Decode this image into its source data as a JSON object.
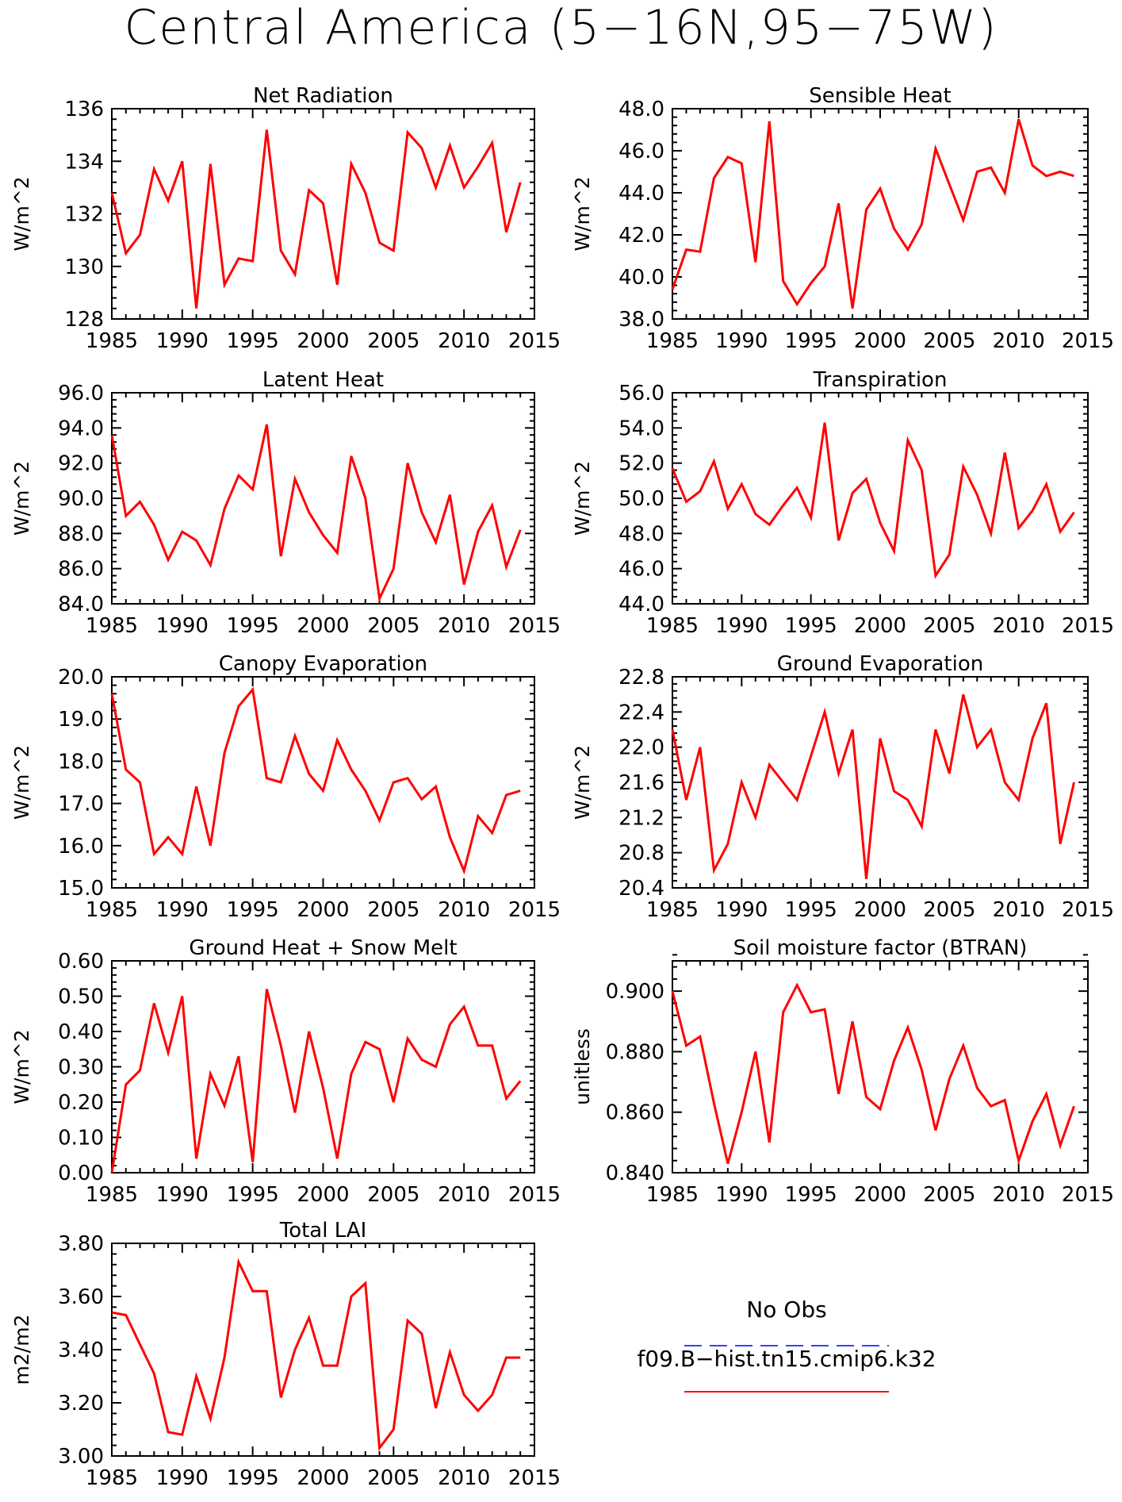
{
  "figure": {
    "title": "Central America (5−16N,95−75W)"
  },
  "legend": {
    "entries": [
      {
        "label": "No Obs",
        "color": "#3344ff",
        "style": "dashed"
      },
      {
        "label": "f09.B−hist.tn15.cmip6.k32",
        "color": "#ff0000",
        "style": "solid"
      }
    ]
  },
  "chart_data": [
    {
      "type": "line",
      "title": "Net Radiation",
      "ylabel": "W/m^2",
      "xlim": [
        1985,
        2015
      ],
      "ylim": [
        128,
        136
      ],
      "yticks": [
        128,
        130,
        132,
        134,
        136
      ],
      "ytick_labels": [
        "128",
        "130",
        "132",
        "134",
        "136"
      ],
      "xticks": [
        1985,
        1990,
        1995,
        2000,
        2005,
        2010,
        2015
      ],
      "xtick_labels": [
        "1985",
        "1990",
        "1995",
        "2000",
        "2005",
        "2010",
        "2015"
      ],
      "series": [
        {
          "color": "#ff0000",
          "x": [
            1985,
            1986,
            1987,
            1988,
            1989,
            1990,
            1991,
            1992,
            1993,
            1994,
            1995,
            1996,
            1997,
            1998,
            1999,
            2000,
            2001,
            2002,
            2003,
            2004,
            2005,
            2006,
            2007,
            2008,
            2009,
            2010,
            2011,
            2012,
            2013,
            2014
          ],
          "y": [
            132.8,
            130.5,
            131.2,
            133.7,
            132.5,
            134.0,
            128.4,
            133.9,
            129.3,
            130.3,
            130.2,
            135.2,
            130.6,
            129.7,
            132.9,
            132.4,
            129.3,
            133.9,
            132.8,
            130.9,
            130.6,
            135.1,
            134.5,
            133.0,
            134.6,
            133.0,
            133.8,
            134.7,
            131.3,
            133.2
          ]
        }
      ]
    },
    {
      "type": "line",
      "title": "Sensible Heat",
      "ylabel": "W/m^2",
      "xlim": [
        1985,
        2015
      ],
      "ylim": [
        38,
        48
      ],
      "yticks": [
        38,
        40,
        42,
        44,
        46,
        48
      ],
      "ytick_labels": [
        "38.0",
        "40.0",
        "42.0",
        "44.0",
        "46.0",
        "48.0"
      ],
      "xticks": [
        1985,
        1990,
        1995,
        2000,
        2005,
        2010,
        2015
      ],
      "xtick_labels": [
        "1985",
        "1990",
        "1995",
        "2000",
        "2005",
        "2010",
        "2015"
      ],
      "series": [
        {
          "color": "#ff0000",
          "x": [
            1985,
            1986,
            1987,
            1988,
            1989,
            1990,
            1991,
            1992,
            1993,
            1994,
            1995,
            1996,
            1997,
            1998,
            1999,
            2000,
            2001,
            2002,
            2003,
            2004,
            2005,
            2006,
            2007,
            2008,
            2009,
            2010,
            2011,
            2012,
            2013,
            2014
          ],
          "y": [
            39.4,
            41.3,
            41.2,
            44.7,
            45.7,
            45.4,
            40.7,
            47.4,
            39.8,
            38.7,
            39.7,
            40.5,
            43.5,
            38.5,
            43.2,
            44.2,
            42.3,
            41.3,
            42.5,
            46.1,
            44.4,
            42.7,
            45.0,
            45.2,
            44.0,
            47.5,
            45.3,
            44.8,
            45.0,
            44.8
          ]
        }
      ]
    },
    {
      "type": "line",
      "title": "Latent Heat",
      "ylabel": "W/m^2",
      "xlim": [
        1985,
        2015
      ],
      "ylim": [
        84,
        96
      ],
      "yticks": [
        84,
        86,
        88,
        90,
        92,
        94,
        96
      ],
      "ytick_labels": [
        "84.0",
        "86.0",
        "88.0",
        "90.0",
        "92.0",
        "94.0",
        "96.0"
      ],
      "xticks": [
        1985,
        1990,
        1995,
        2000,
        2005,
        2010,
        2015
      ],
      "xtick_labels": [
        "1985",
        "1990",
        "1995",
        "2000",
        "2005",
        "2010",
        "2015"
      ],
      "series": [
        {
          "color": "#ff0000",
          "x": [
            1985,
            1986,
            1987,
            1988,
            1989,
            1990,
            1991,
            1992,
            1993,
            1994,
            1995,
            1996,
            1997,
            1998,
            1999,
            2000,
            2001,
            2002,
            2003,
            2004,
            2005,
            2006,
            2007,
            2008,
            2009,
            2010,
            2011,
            2012,
            2013,
            2014
          ],
          "y": [
            93.6,
            89.0,
            89.8,
            88.5,
            86.5,
            88.1,
            87.6,
            86.2,
            89.4,
            91.3,
            90.5,
            94.2,
            86.7,
            91.1,
            89.2,
            87.9,
            86.9,
            92.4,
            90.0,
            84.3,
            86.0,
            92.0,
            89.2,
            87.5,
            90.2,
            85.1,
            88.1,
            89.6,
            86.1,
            88.2
          ]
        }
      ]
    },
    {
      "type": "line",
      "title": "Transpiration",
      "ylabel": "W/m^2",
      "xlim": [
        1985,
        2015
      ],
      "ylim": [
        44,
        56
      ],
      "yticks": [
        44,
        46,
        48,
        50,
        52,
        54,
        56
      ],
      "ytick_labels": [
        "44.0",
        "46.0",
        "48.0",
        "50.0",
        "52.0",
        "54.0",
        "56.0"
      ],
      "xticks": [
        1985,
        1990,
        1995,
        2000,
        2005,
        2010,
        2015
      ],
      "xtick_labels": [
        "1985",
        "1990",
        "1995",
        "2000",
        "2005",
        "2010",
        "2015"
      ],
      "series": [
        {
          "color": "#ff0000",
          "x": [
            1985,
            1986,
            1987,
            1988,
            1989,
            1990,
            1991,
            1992,
            1993,
            1994,
            1995,
            1996,
            1997,
            1998,
            1999,
            2000,
            2001,
            2002,
            2003,
            2004,
            2005,
            2006,
            2007,
            2008,
            2009,
            2010,
            2011,
            2012,
            2013,
            2014
          ],
          "y": [
            51.7,
            49.8,
            50.4,
            52.1,
            49.4,
            50.8,
            49.1,
            48.5,
            49.6,
            50.6,
            48.9,
            54.3,
            47.6,
            50.3,
            51.1,
            48.6,
            47.0,
            53.3,
            51.6,
            45.6,
            46.8,
            51.8,
            50.2,
            48.0,
            52.6,
            48.3,
            49.3,
            50.8,
            48.1,
            49.2
          ]
        }
      ]
    },
    {
      "type": "line",
      "title": "Canopy Evaporation",
      "ylabel": "W/m^2",
      "xlim": [
        1985,
        2015
      ],
      "ylim": [
        15,
        20
      ],
      "yticks": [
        15,
        16,
        17,
        18,
        19,
        20
      ],
      "ytick_labels": [
        "15.0",
        "16.0",
        "17.0",
        "18.0",
        "19.0",
        "20.0"
      ],
      "xticks": [
        1985,
        1990,
        1995,
        2000,
        2005,
        2010,
        2015
      ],
      "xtick_labels": [
        "1985",
        "1990",
        "1995",
        "2000",
        "2005",
        "2010",
        "2015"
      ],
      "series": [
        {
          "color": "#ff0000",
          "x": [
            1985,
            1986,
            1987,
            1988,
            1989,
            1990,
            1991,
            1992,
            1993,
            1994,
            1995,
            1996,
            1997,
            1998,
            1999,
            2000,
            2001,
            2002,
            2003,
            2004,
            2005,
            2006,
            2007,
            2008,
            2009,
            2010,
            2011,
            2012,
            2013,
            2014
          ],
          "y": [
            19.6,
            17.8,
            17.5,
            15.8,
            16.2,
            15.8,
            17.4,
            16.0,
            18.2,
            19.3,
            19.7,
            17.6,
            17.5,
            18.6,
            17.7,
            17.3,
            18.5,
            17.8,
            17.3,
            16.6,
            17.5,
            17.6,
            17.1,
            17.4,
            16.2,
            15.4,
            16.7,
            16.3,
            17.2,
            17.3
          ]
        }
      ]
    },
    {
      "type": "line",
      "title": "Ground Evaporation",
      "ylabel": "W/m^2",
      "xlim": [
        1985,
        2015
      ],
      "ylim": [
        20.4,
        22.8
      ],
      "yticks": [
        20.4,
        20.8,
        21.2,
        21.6,
        22.0,
        22.4,
        22.8
      ],
      "ytick_labels": [
        "20.4",
        "20.8",
        "21.2",
        "21.6",
        "22.0",
        "22.4",
        "22.8"
      ],
      "xticks": [
        1985,
        1990,
        1995,
        2000,
        2005,
        2010,
        2015
      ],
      "xtick_labels": [
        "1985",
        "1990",
        "1995",
        "2000",
        "2005",
        "2010",
        "2015"
      ],
      "series": [
        {
          "color": "#ff0000",
          "x": [
            1985,
            1986,
            1987,
            1988,
            1989,
            1990,
            1991,
            1992,
            1993,
            1994,
            1995,
            1996,
            1997,
            1998,
            1999,
            2000,
            2001,
            2002,
            2003,
            2004,
            2005,
            2006,
            2007,
            2008,
            2009,
            2010,
            2011,
            2012,
            2013,
            2014
          ],
          "y": [
            22.2,
            21.4,
            22.0,
            20.6,
            20.9,
            21.6,
            21.2,
            21.8,
            21.6,
            21.4,
            21.9,
            22.4,
            21.7,
            22.2,
            20.5,
            22.1,
            21.5,
            21.4,
            21.1,
            22.2,
            21.7,
            22.6,
            22.0,
            22.2,
            21.6,
            21.4,
            22.1,
            22.5,
            20.9,
            21.6
          ]
        }
      ]
    },
    {
      "type": "line",
      "title": "Ground Heat + Snow Melt",
      "ylabel": "W/m^2",
      "xlim": [
        1985,
        2015
      ],
      "ylim": [
        0,
        0.6
      ],
      "yticks": [
        0,
        0.1,
        0.2,
        0.3,
        0.4,
        0.5,
        0.6
      ],
      "ytick_labels": [
        "0.00",
        "0.10",
        "0.20",
        "0.30",
        "0.40",
        "0.50",
        "0.60"
      ],
      "xticks": [
        1985,
        1990,
        1995,
        2000,
        2005,
        2010,
        2015
      ],
      "xtick_labels": [
        "1985",
        "1990",
        "1995",
        "2000",
        "2005",
        "2010",
        "2015"
      ],
      "series": [
        {
          "color": "#ff0000",
          "x": [
            1985,
            1986,
            1987,
            1988,
            1989,
            1990,
            1991,
            1992,
            1993,
            1994,
            1995,
            1996,
            1997,
            1998,
            1999,
            2000,
            2001,
            2002,
            2003,
            2004,
            2005,
            2006,
            2007,
            2008,
            2009,
            2010,
            2011,
            2012,
            2013,
            2014
          ],
          "y": [
            0.0,
            0.25,
            0.29,
            0.48,
            0.34,
            0.5,
            0.04,
            0.28,
            0.19,
            0.33,
            0.03,
            0.52,
            0.36,
            0.17,
            0.4,
            0.24,
            0.04,
            0.28,
            0.37,
            0.35,
            0.2,
            0.38,
            0.32,
            0.3,
            0.42,
            0.47,
            0.36,
            0.36,
            0.21,
            0.26
          ]
        }
      ]
    },
    {
      "type": "line",
      "title": "Soil moisture factor (BTRAN)",
      "ylabel": "unitless",
      "xlim": [
        1985,
        2015
      ],
      "ylim": [
        0.84,
        0.91
      ],
      "yticks": [
        0.84,
        0.86,
        0.88,
        0.9
      ],
      "ytick_labels": [
        "0.840",
        "0.860",
        "0.880",
        "0.900"
      ],
      "xticks": [
        1985,
        1990,
        1995,
        2000,
        2005,
        2010,
        2015
      ],
      "xtick_labels": [
        "1985",
        "1990",
        "1995",
        "2000",
        "2005",
        "2010",
        "2015"
      ],
      "series": [
        {
          "color": "#ff0000",
          "x": [
            1985,
            1986,
            1987,
            1988,
            1989,
            1990,
            1991,
            1992,
            1993,
            1994,
            1995,
            1996,
            1997,
            1998,
            1999,
            2000,
            2001,
            2002,
            2003,
            2004,
            2005,
            2006,
            2007,
            2008,
            2009,
            2010,
            2011,
            2012,
            2013,
            2014
          ],
          "y": [
            0.9,
            0.882,
            0.885,
            0.863,
            0.843,
            0.86,
            0.88,
            0.85,
            0.893,
            0.902,
            0.893,
            0.894,
            0.866,
            0.89,
            0.865,
            0.861,
            0.877,
            0.888,
            0.874,
            0.854,
            0.871,
            0.882,
            0.868,
            0.862,
            0.864,
            0.844,
            0.857,
            0.866,
            0.849,
            0.862
          ]
        }
      ]
    },
    {
      "type": "line",
      "title": "Total LAI",
      "ylabel": "m2/m2",
      "xlim": [
        1985,
        2015
      ],
      "ylim": [
        3.0,
        3.8
      ],
      "yticks": [
        3.0,
        3.2,
        3.4,
        3.6,
        3.8
      ],
      "ytick_labels": [
        "3.00",
        "3.20",
        "3.40",
        "3.60",
        "3.80"
      ],
      "xticks": [
        1985,
        1990,
        1995,
        2000,
        2005,
        2010,
        2015
      ],
      "xtick_labels": [
        "1985",
        "1990",
        "1995",
        "2000",
        "2005",
        "2010",
        "2015"
      ],
      "series": [
        {
          "color": "#ff0000",
          "x": [
            1985,
            1986,
            1987,
            1988,
            1989,
            1990,
            1991,
            1992,
            1993,
            1994,
            1995,
            1996,
            1997,
            1998,
            1999,
            2000,
            2001,
            2002,
            2003,
            2004,
            2005,
            2006,
            2007,
            2008,
            2009,
            2010,
            2011,
            2012,
            2013,
            2014
          ],
          "y": [
            3.54,
            3.53,
            3.42,
            3.31,
            3.09,
            3.08,
            3.3,
            3.14,
            3.37,
            3.73,
            3.62,
            3.62,
            3.22,
            3.4,
            3.52,
            3.34,
            3.34,
            3.6,
            3.65,
            3.03,
            3.1,
            3.51,
            3.46,
            3.18,
            3.39,
            3.23,
            3.17,
            3.23,
            3.37,
            3.37
          ]
        }
      ]
    }
  ]
}
